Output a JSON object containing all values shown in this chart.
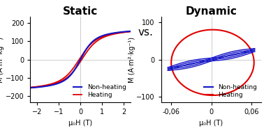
{
  "title_static": "Static",
  "title_vs": "vs.",
  "title_dynamic": "Dynamic",
  "ylabel": "M (A·m²·kg⁻¹)",
  "xlabel_static": "μ₀H (T)",
  "xlabel_dynamic": "μ₀H (T)",
  "static_xlim": [
    -2.3,
    2.3
  ],
  "static_ylim": [
    -235,
    235
  ],
  "static_xticks": [
    -2,
    -1,
    0,
    1,
    2
  ],
  "static_yticks": [
    -200,
    -100,
    0,
    100,
    200
  ],
  "dynamic_xlim": [
    -0.075,
    0.075
  ],
  "dynamic_ylim": [
    -115,
    115
  ],
  "dynamic_xticks": [
    -0.06,
    0,
    0.06
  ],
  "dynamic_yticks": [
    -100,
    0,
    100
  ],
  "color_nonheating": "#1414c8",
  "color_heating": "#e00000",
  "legend_nonheating": "Non-heating",
  "legend_heating": "Heating",
  "background_color": "#ffffff",
  "title_fontsize": 11,
  "axis_fontsize": 7,
  "tick_fontsize": 7,
  "legend_fontsize": 6.5
}
